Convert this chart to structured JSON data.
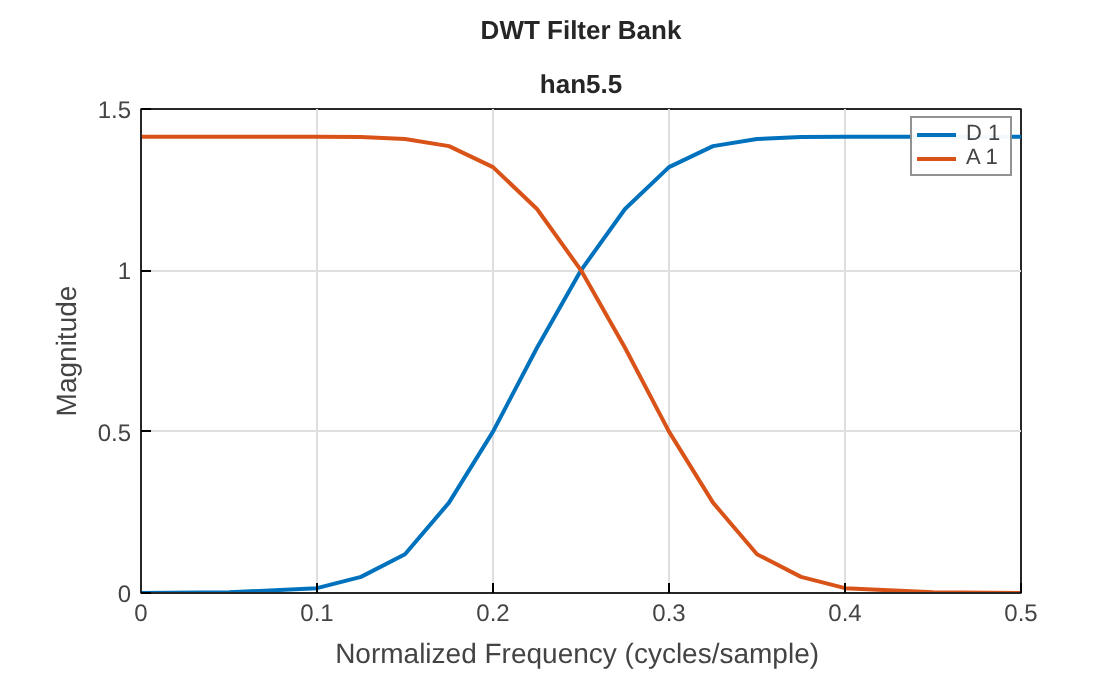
{
  "chart_data": {
    "type": "line",
    "title": "DWT Filter Bank",
    "subtitle": "han5.5",
    "xlabel": "Normalized Frequency  (cycles/sample)",
    "ylabel": "Magnitude",
    "x": [
      0,
      0.05,
      0.1,
      0.125,
      0.15,
      0.175,
      0.2,
      0.225,
      0.25,
      0.275,
      0.3,
      0.325,
      0.35,
      0.375,
      0.4,
      0.45,
      0.5
    ],
    "series": [
      {
        "name": "D 1",
        "color": "#0072bd",
        "values": [
          0,
          0.002,
          0.015,
          0.05,
          0.12,
          0.28,
          0.5,
          0.76,
          1.0,
          1.19,
          1.32,
          1.385,
          1.407,
          1.413,
          1.414,
          1.414,
          1.414
        ]
      },
      {
        "name": "A 1",
        "color": "#d95319",
        "values": [
          1.414,
          1.414,
          1.414,
          1.413,
          1.407,
          1.385,
          1.32,
          1.19,
          1.0,
          0.76,
          0.5,
          0.28,
          0.12,
          0.05,
          0.015,
          0.002,
          0
        ]
      }
    ],
    "xlim": [
      0,
      0.5
    ],
    "ylim": [
      0,
      1.5
    ],
    "xticks": [
      0,
      0.1,
      0.2,
      0.3,
      0.4,
      0.5
    ],
    "yticks": [
      0,
      0.5,
      1,
      1.5
    ],
    "grid": true,
    "legend": "top right",
    "marker": "none",
    "line_style": "solid"
  }
}
